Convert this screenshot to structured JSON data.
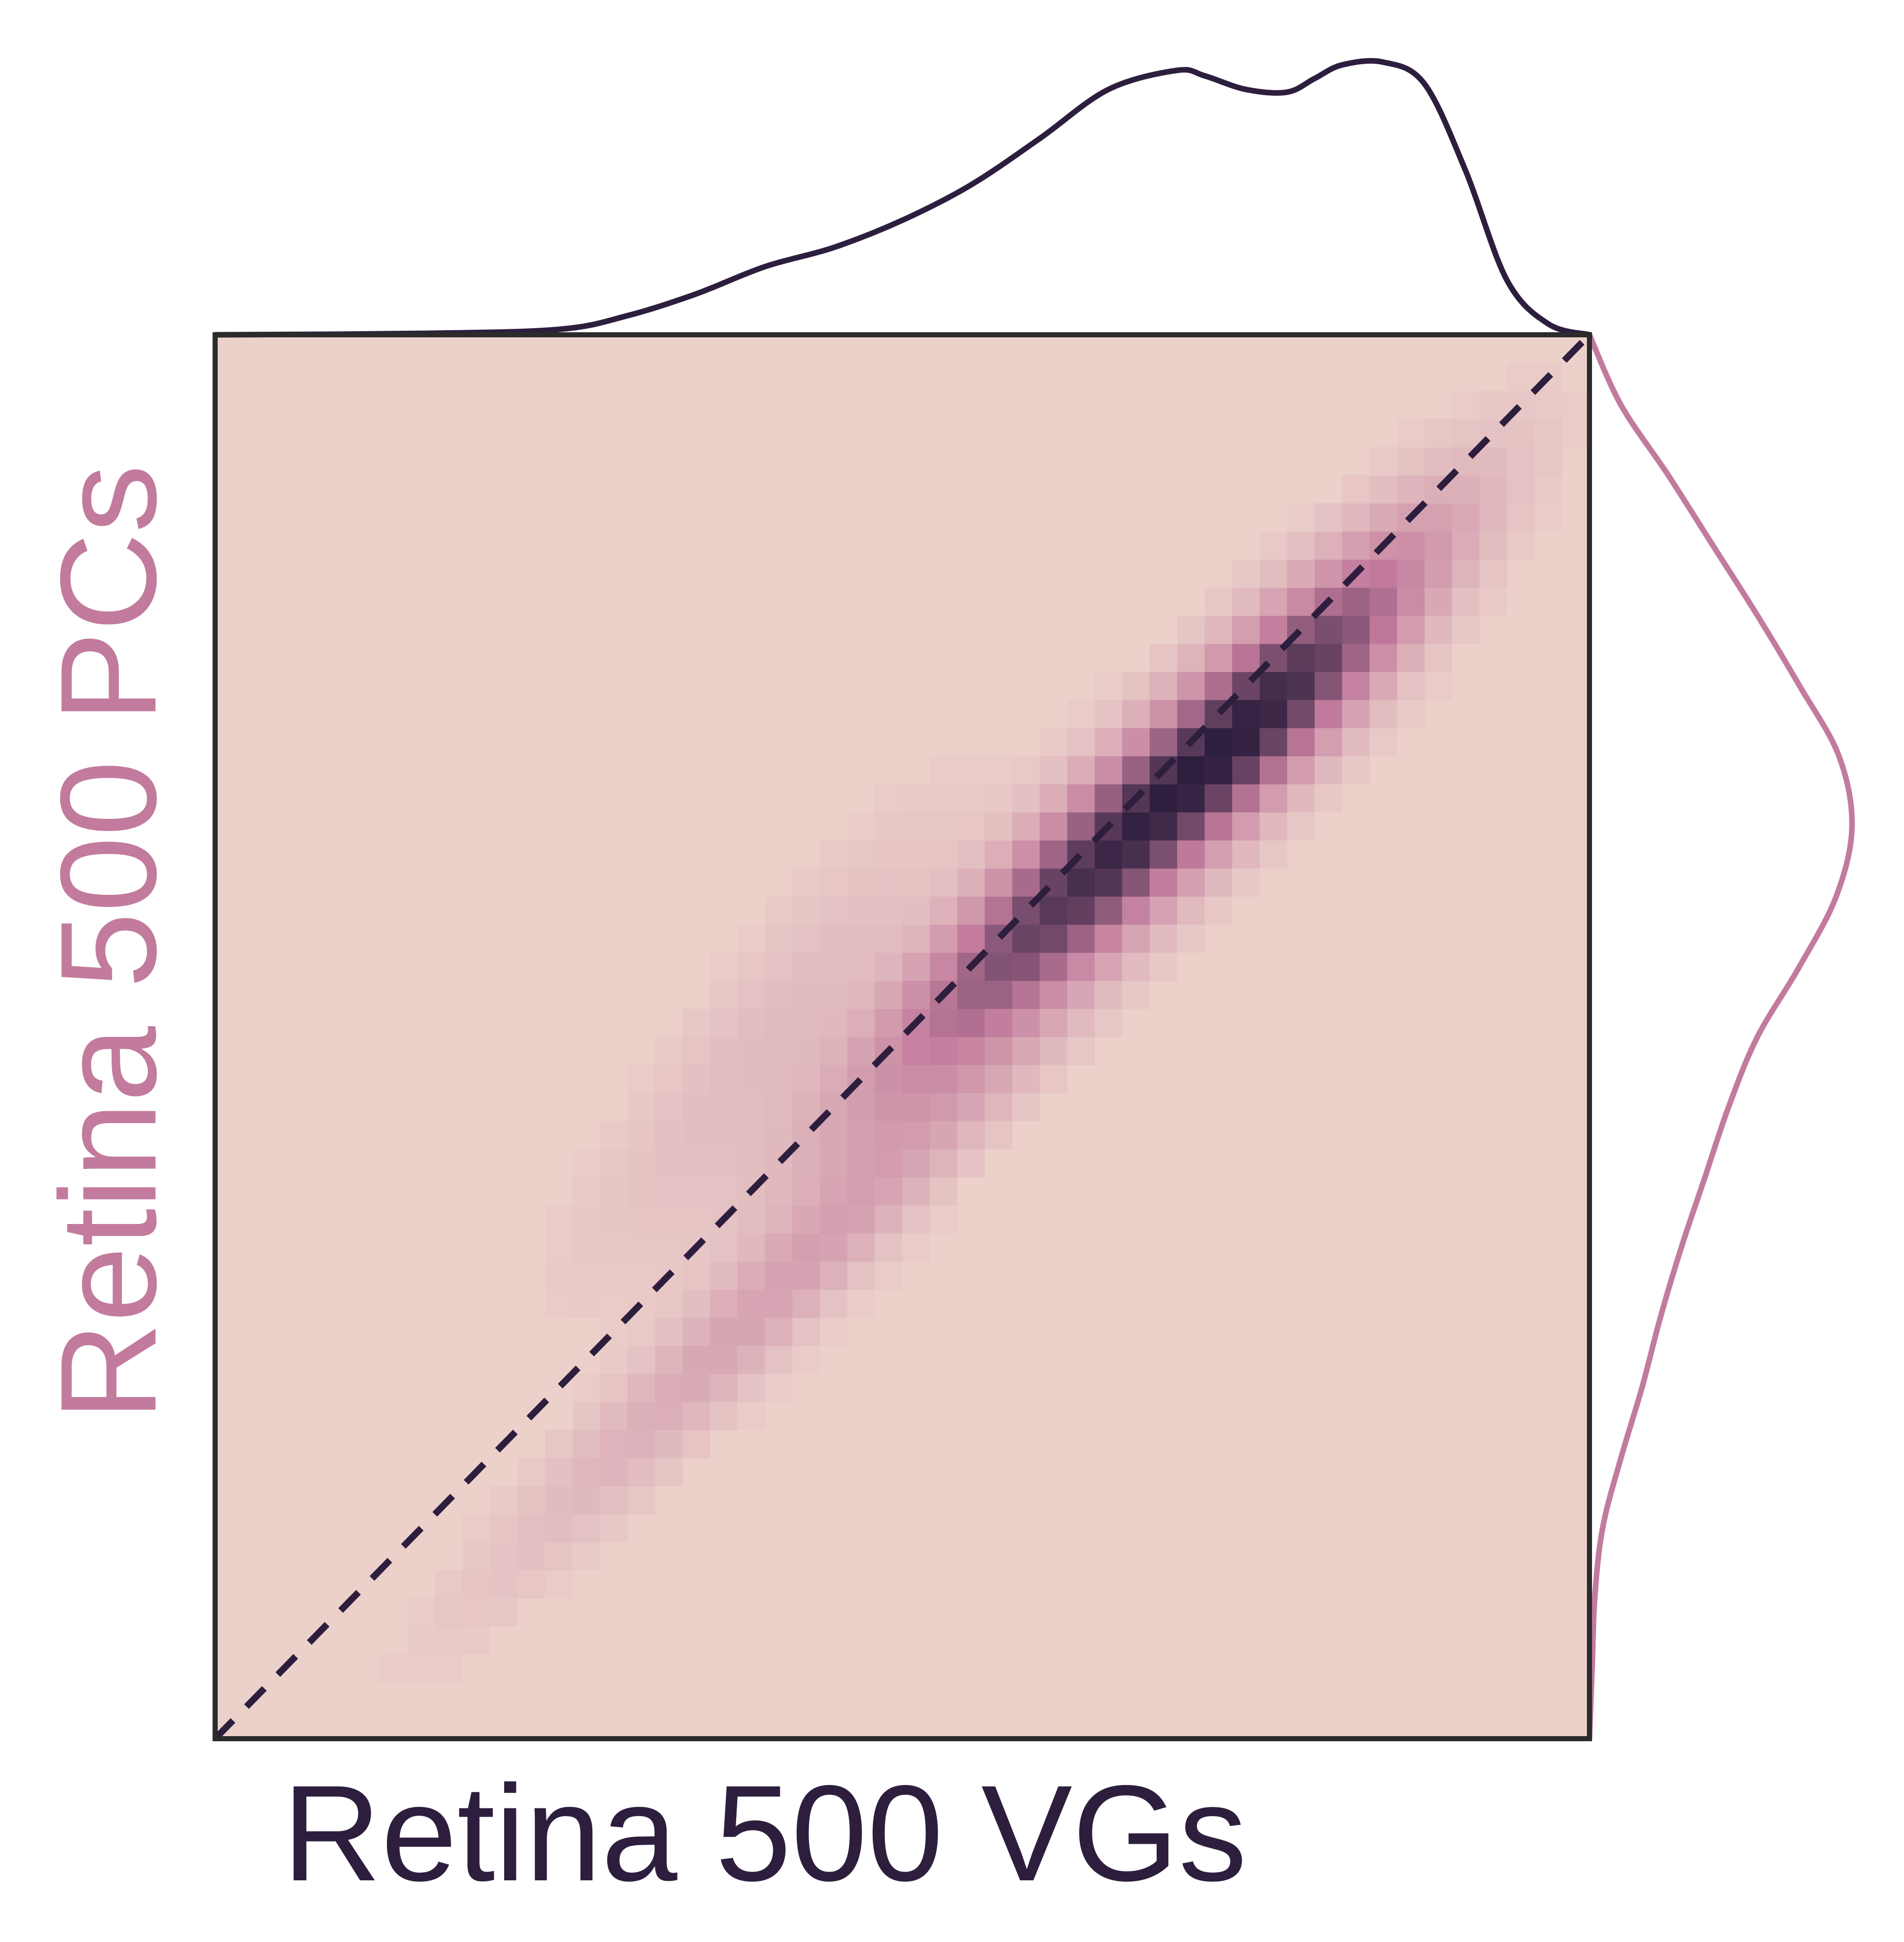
{
  "chart_data": {
    "type": "heatmap",
    "title": "",
    "xlabel": "Retina 500 VGs",
    "ylabel": "Retina 500 PCs",
    "xlim": [
      0,
      1
    ],
    "ylim": [
      0,
      1
    ],
    "grid": false,
    "identity_line": true,
    "colors": {
      "low": "#ecd1cb",
      "mid": "#c27b9c",
      "high": "#2d1e3e",
      "x_label_color": "#2d1e3e",
      "y_label_color": "#c27b9c",
      "x_marginal_color": "#2d1e3e",
      "y_marginal_color": "#c27b9c",
      "frame_color": "#2b2b2b"
    },
    "density_components": [
      {
        "cx": 0.655,
        "cy": 0.635,
        "sx": 0.115,
        "sy": 0.115,
        "rho": 0.93,
        "w": 1.0
      },
      {
        "cx": 0.79,
        "cy": 0.75,
        "sx": 0.07,
        "sy": 0.075,
        "rho": 0.85,
        "w": 0.5
      },
      {
        "cx": 0.42,
        "cy": 0.33,
        "sx": 0.13,
        "sy": 0.13,
        "rho": 0.97,
        "w": 0.24
      },
      {
        "cx": 0.4,
        "cy": 0.5,
        "sx": 0.09,
        "sy": 0.11,
        "rho": 0.9,
        "w": 0.1
      }
    ],
    "x_marginal": {
      "x": [
        0.0,
        0.15,
        0.25,
        0.3,
        0.35,
        0.4,
        0.45,
        0.5,
        0.55,
        0.6,
        0.65,
        0.7,
        0.72,
        0.75,
        0.78,
        0.8,
        0.82,
        0.85,
        0.88,
        0.91,
        0.94,
        0.97,
        1.0
      ],
      "density": [
        0.0,
        0.005,
        0.02,
        0.07,
        0.15,
        0.25,
        0.32,
        0.42,
        0.55,
        0.72,
        0.9,
        0.97,
        0.95,
        0.9,
        0.89,
        0.94,
        0.99,
        1.0,
        0.92,
        0.6,
        0.2,
        0.04,
        0.0
      ]
    },
    "y_marginal": {
      "y": [
        0.0,
        0.05,
        0.1,
        0.15,
        0.2,
        0.25,
        0.3,
        0.35,
        0.4,
        0.45,
        0.5,
        0.55,
        0.6,
        0.65,
        0.7,
        0.75,
        0.8,
        0.85,
        0.9,
        0.95,
        1.0
      ],
      "density": [
        0.0,
        0.01,
        0.02,
        0.05,
        0.12,
        0.2,
        0.27,
        0.35,
        0.44,
        0.53,
        0.64,
        0.8,
        0.94,
        1.0,
        0.95,
        0.8,
        0.64,
        0.47,
        0.3,
        0.12,
        0.0
      ]
    }
  }
}
